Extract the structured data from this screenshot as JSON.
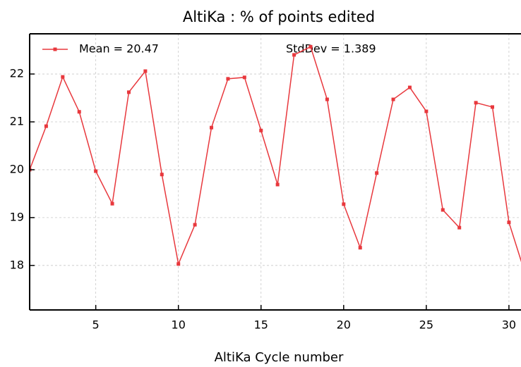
{
  "chart_data": {
    "type": "line",
    "title": "AltiKa : % of points edited",
    "x_label": "AltiKa Cycle number",
    "annotation": "StdDev = 1.389",
    "x": [
      1,
      2,
      3,
      4,
      5,
      6,
      7,
      8,
      9,
      10,
      11,
      12,
      13,
      14,
      15,
      16,
      17,
      18,
      19,
      20,
      21,
      22,
      23,
      24,
      25,
      26,
      27,
      28,
      29,
      30,
      31
    ],
    "series": [
      {
        "name": "Mean = 20.47",
        "color": "#e8383d",
        "values": [
          20.0,
          20.91,
          21.94,
          21.21,
          19.97,
          19.29,
          21.62,
          22.06,
          19.9,
          18.03,
          18.85,
          20.88,
          21.9,
          21.93,
          20.82,
          19.69,
          22.4,
          22.57,
          21.47,
          19.28,
          18.37,
          19.93,
          21.47,
          21.72,
          21.22,
          19.16,
          18.79,
          21.4,
          21.31,
          18.9,
          17.81
        ]
      }
    ],
    "xlim": [
      1,
      30.73
    ],
    "ylim": [
      17.07,
      22.84
    ],
    "xticks": [
      5,
      10,
      15,
      20,
      25,
      30
    ],
    "yticks": [
      18,
      19,
      20,
      21,
      22
    ],
    "grid": true,
    "legend": "upper left"
  }
}
